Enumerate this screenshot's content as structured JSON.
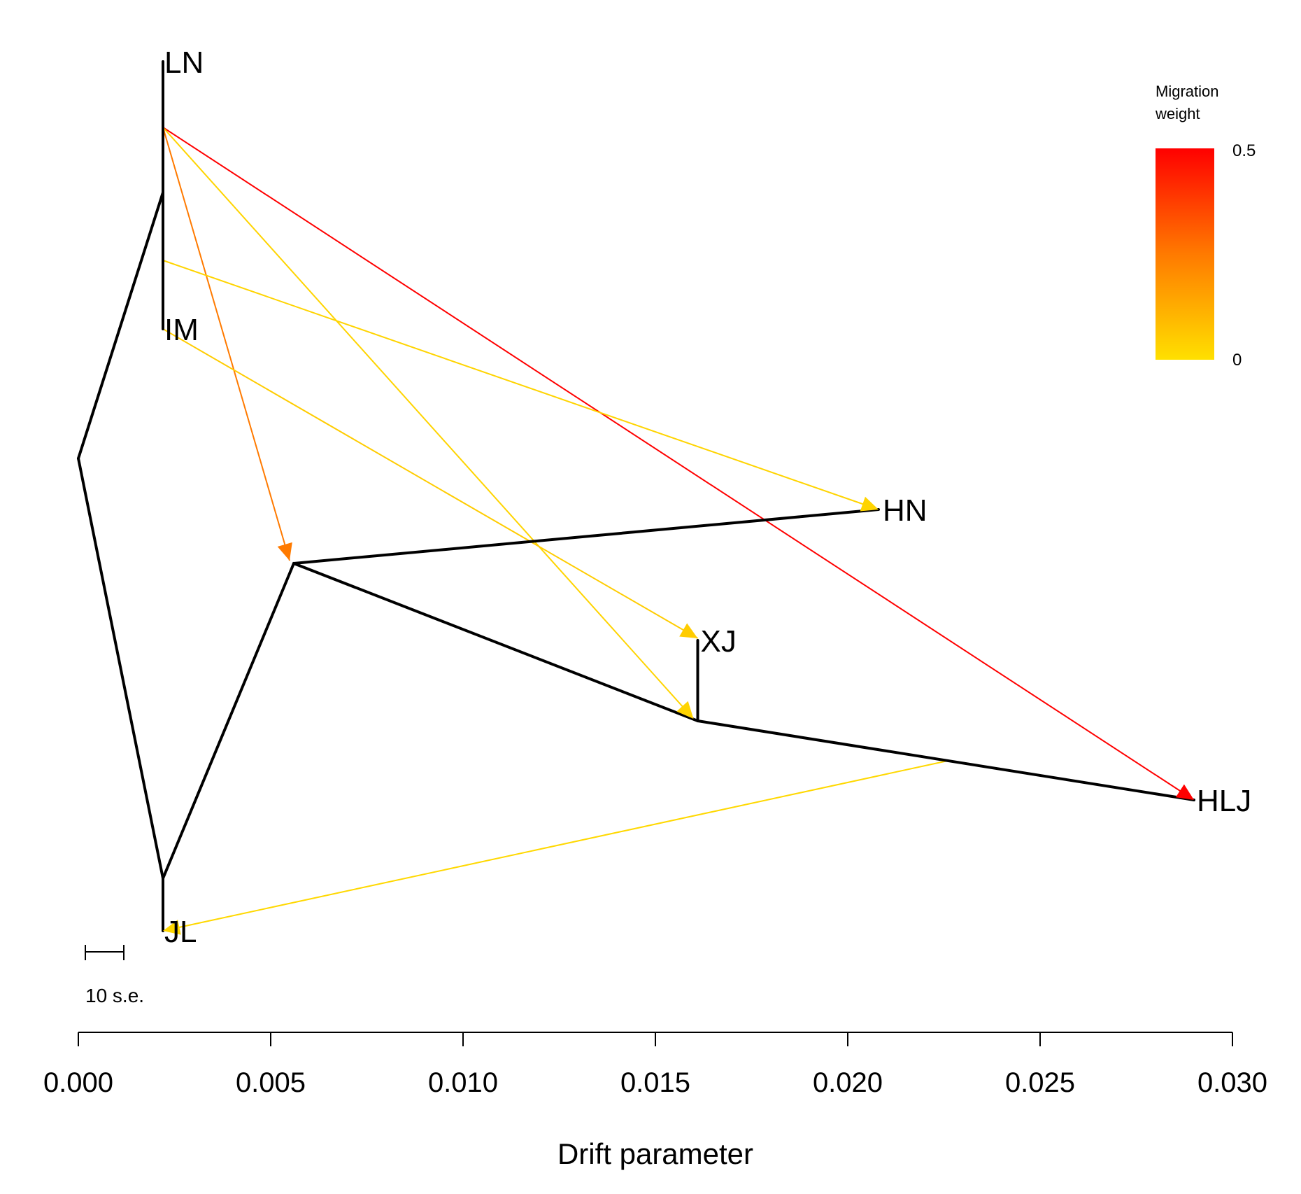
{
  "chart_data": {
    "type": "tree",
    "xlabel": "Drift parameter",
    "xlim": [
      0.0,
      0.03
    ],
    "x_ticks": [
      "0.000",
      "0.005",
      "0.010",
      "0.015",
      "0.020",
      "0.025",
      "0.030"
    ],
    "scale_bar_label": "10 s.e.",
    "nodes": [
      {
        "id": "root",
        "x": 0.0
      },
      {
        "id": "n1",
        "x": 0.0022
      },
      {
        "id": "n2",
        "x": 0.0022
      },
      {
        "id": "n3",
        "x": 0.0056
      },
      {
        "id": "n4",
        "x": 0.0161
      },
      {
        "id": "LN",
        "x": 0.0022,
        "label": "LN"
      },
      {
        "id": "IM",
        "x": 0.0022,
        "label": "IM"
      },
      {
        "id": "JL",
        "x": 0.0022,
        "label": "JL"
      },
      {
        "id": "HN",
        "x": 0.0208,
        "label": "HN"
      },
      {
        "id": "XJ",
        "x": 0.0161,
        "label": "XJ"
      },
      {
        "id": "HLJ",
        "x": 0.029,
        "label": "HLJ"
      }
    ],
    "edges": [
      {
        "from": "root",
        "to": "n1"
      },
      {
        "from": "root",
        "to": "n2"
      },
      {
        "from": "n1",
        "to": "LN"
      },
      {
        "from": "n1",
        "to": "IM"
      },
      {
        "from": "n2",
        "to": "JL"
      },
      {
        "from": "n2",
        "to": "n3"
      },
      {
        "from": "n3",
        "to": "HN"
      },
      {
        "from": "n3",
        "to": "n4"
      },
      {
        "from": "n4",
        "to": "XJ"
      },
      {
        "from": "n4",
        "to": "HLJ"
      }
    ],
    "migrations": [
      {
        "from": "n1 → LN",
        "to": "HLJ",
        "weight": 0.5
      },
      {
        "from": "n1 → LN",
        "to": "n3",
        "weight": 0.25
      },
      {
        "from": "n1 → LN",
        "to": "n4",
        "weight": 0.03
      },
      {
        "from": "n1 → IM",
        "to": "HN",
        "weight": 0.03
      },
      {
        "from": "IM",
        "to": "XJ",
        "weight": 0.05
      },
      {
        "from": "n4 → HLJ",
        "to": "JL",
        "weight": 0.02
      }
    ],
    "legend": {
      "title": [
        "Migration",
        "weight"
      ],
      "max_label": "0.5",
      "min_label": "0",
      "colors": [
        "#ffe000",
        "#ff7a00",
        "#ff0000"
      ]
    },
    "line_color": "#000000"
  }
}
